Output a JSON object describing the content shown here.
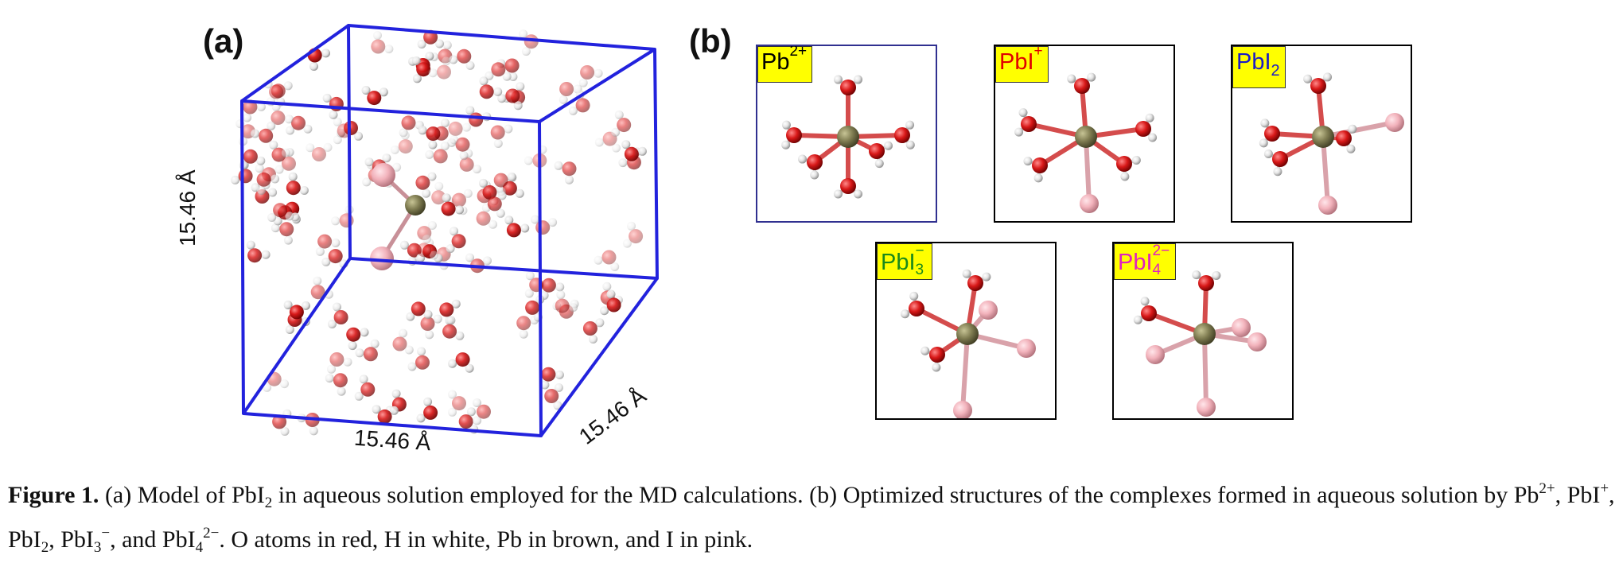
{
  "panel_a": {
    "label": "(a)",
    "dim_left": "15.46 Å",
    "dim_bottom": "15.46 Å",
    "dim_right": "15.46 Å"
  },
  "panel_b": {
    "label": "(b)",
    "complexes": [
      {
        "formula": "Pb",
        "sup": "2+",
        "sub": "",
        "color": "#000000"
      },
      {
        "formula": "PbI",
        "sup": "+",
        "sub": "",
        "color": "#e00000"
      },
      {
        "formula": "PbI",
        "sup": "",
        "sub": "2",
        "color": "#1a1ac8"
      },
      {
        "formula": "PbI",
        "sup": "−",
        "sub": "3",
        "color": "#1a8a1a"
      },
      {
        "formula": "PbI",
        "sup": "2−",
        "sub": "4",
        "color": "#e020c0"
      }
    ]
  },
  "atom_colors": {
    "O": "#cc1111",
    "H": "#e8e8e8",
    "Pb": "#7d7a50",
    "I": "#f0b0b8"
  },
  "box_color": "#2222dd",
  "caption": {
    "label": "Figure 1.",
    "t1": " (a) Model of PbI",
    "s1": "2",
    "t2": " in aqueous solution employed for the MD calculations. (b) Optimized structures of the complexes formed in aqueous solution by Pb",
    "p1": "2+",
    "t3": ", PbI",
    "p2": "+",
    "t4": ", PbI",
    "s2": "2",
    "t5": ", PbI",
    "s3": "3",
    "p3": "−",
    "t6": ", and PbI",
    "s4": "4",
    "p4": "2−",
    "t7": ". O atoms in red, H in white, Pb in brown, and I in pink."
  }
}
